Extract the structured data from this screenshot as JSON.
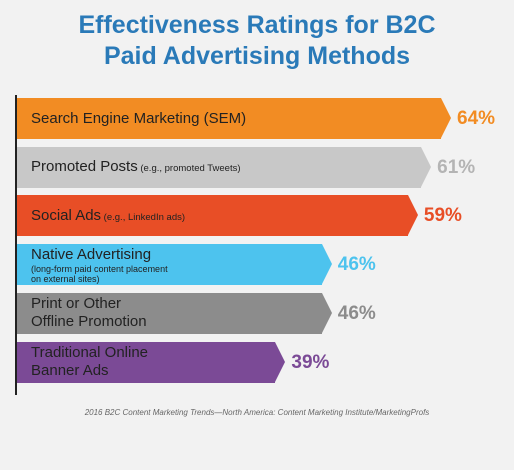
{
  "title_line1": "Effectiveness Ratings for B2C",
  "title_line2": "Paid Advertising Methods",
  "source": "2016 B2C Content Marketing Trends—North America: Content Marketing Institute/MarketingProfs",
  "chart_data": {
    "type": "bar",
    "orientation": "horizontal",
    "title": "Effectiveness Ratings for B2C Paid Advertising Methods",
    "categories": [
      "Search Engine Marketing (SEM)",
      "Promoted Posts (e.g., promoted Tweets)",
      "Social Ads (e.g., LinkedIn ads)",
      "Native Advertising (long-form paid content placement on external sites)",
      "Print or Other Offline Promotion",
      "Traditional Online Banner Ads"
    ],
    "values": [
      64,
      61,
      59,
      46,
      46,
      39
    ],
    "unit": "%",
    "bars": [
      {
        "label_lines": [
          "Search Engine Marketing (SEM)"
        ],
        "note": "",
        "sub": [],
        "value_label": "64%",
        "color": "#f28c23",
        "value_color": "#f28c23"
      },
      {
        "label_lines": [
          "Promoted Posts"
        ],
        "note": "(e.g., promoted Tweets)",
        "sub": [],
        "value_label": "61%",
        "color": "#c8c8c8",
        "value_color": "#b4b4b4"
      },
      {
        "label_lines": [
          "Social Ads"
        ],
        "note": "(e.g., LinkedIn ads)",
        "sub": [],
        "value_label": "59%",
        "color": "#e84e26",
        "value_color": "#e84e26"
      },
      {
        "label_lines": [
          "Native Advertising"
        ],
        "note": "",
        "sub": [
          "(long-form paid content placement",
          "on external sites)"
        ],
        "value_label": "46%",
        "color": "#4dc3ee",
        "value_color": "#4dc3ee"
      },
      {
        "label_lines": [
          "Print or Other",
          "Offline Promotion"
        ],
        "note": "",
        "sub": [],
        "value_label": "46%",
        "color": "#8c8c8c",
        "value_color": "#8c8c8c"
      },
      {
        "label_lines": [
          "Traditional Online",
          "Banner Ads"
        ],
        "note": "",
        "sub": [],
        "value_label": "39%",
        "color": "#7b4a96",
        "value_color": "#7b4a96"
      }
    ]
  }
}
